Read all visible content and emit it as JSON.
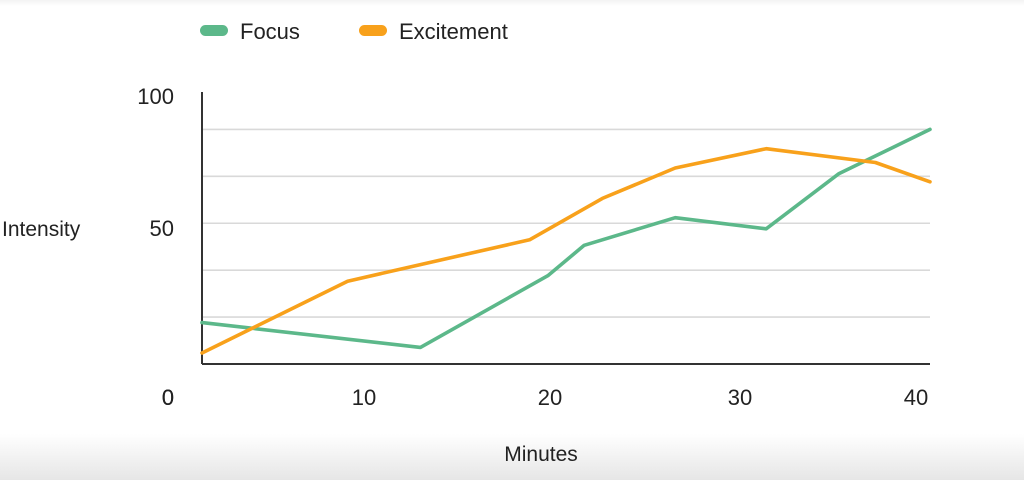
{
  "chart_data": {
    "type": "line",
    "title": "",
    "xlabel": "Minutes",
    "ylabel": "Intensity",
    "xlim": [
      0,
      40
    ],
    "ylim": [
      0,
      100
    ],
    "x_ticks": [
      "0",
      "10",
      "20",
      "30",
      "40"
    ],
    "y_ticks": [
      "0",
      "50",
      "100"
    ],
    "grid": true,
    "legend_position": "top-left",
    "series": [
      {
        "name": "Focus",
        "color": "#5cb88a",
        "points": [
          [
            0,
            15
          ],
          [
            12,
            6
          ],
          [
            19,
            32
          ],
          [
            21,
            43
          ],
          [
            26,
            53
          ],
          [
            31,
            49
          ],
          [
            35,
            69
          ],
          [
            40,
            85
          ]
        ]
      },
      {
        "name": "Excitement",
        "color": "#f8a11b",
        "points": [
          [
            0,
            4
          ],
          [
            8,
            30
          ],
          [
            12,
            36
          ],
          [
            18,
            45
          ],
          [
            22,
            60
          ],
          [
            26,
            71
          ],
          [
            31,
            78
          ],
          [
            37,
            73
          ],
          [
            40,
            66
          ]
        ]
      }
    ]
  }
}
